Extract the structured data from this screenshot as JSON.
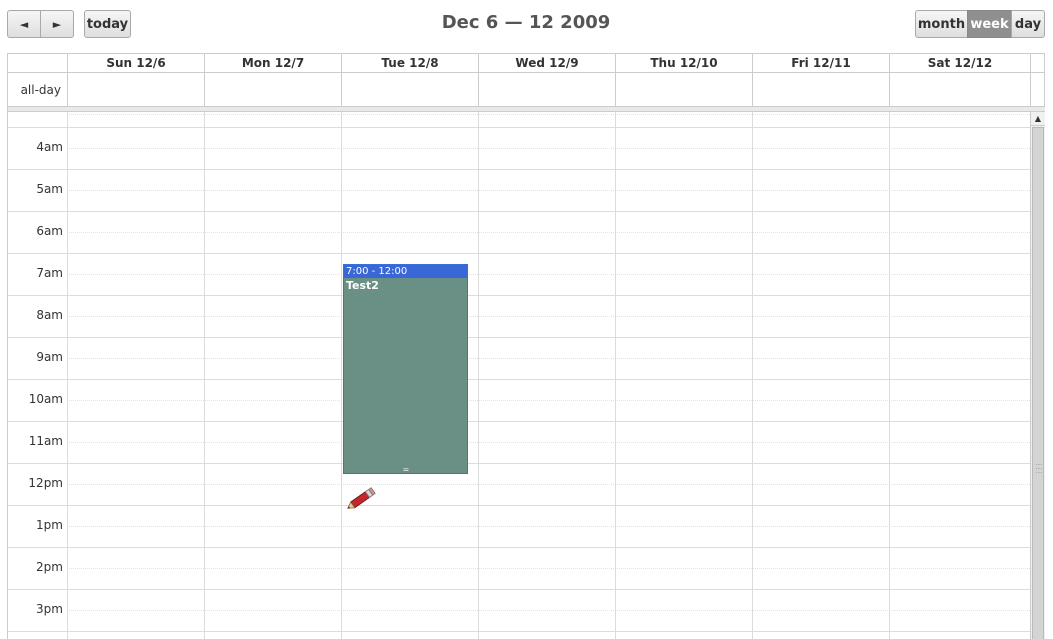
{
  "header": {
    "prev_label": "◄",
    "next_label": "►",
    "today_label": "today",
    "title": "Dec 6 — 12 2009",
    "views": {
      "month": "month",
      "week": "week",
      "day": "day"
    },
    "active_view": "week"
  },
  "columns": [
    "Sun 12/6",
    "Mon 12/7",
    "Tue 12/8",
    "Wed 12/9",
    "Thu 12/10",
    "Fri 12/11",
    "Sat 12/12"
  ],
  "allday_label": "all-day",
  "time_slots": [
    "4am",
    "5am",
    "6am",
    "7am",
    "8am",
    "9am",
    "10am",
    "11am",
    "12pm",
    "1pm",
    "2pm",
    "3pm"
  ],
  "events": [
    {
      "time": "7:00 - 12:00",
      "title": "Test2",
      "day": "Tue 12/8",
      "color": "#6a8f85",
      "header_color": "#3a67d6"
    }
  ],
  "colors": {
    "border": "#cccccc",
    "active_button": "#8f8f8f",
    "event_body": "#6a8f85",
    "event_header": "#3a67d6"
  },
  "icons": {
    "edit": "pencil-icon",
    "scroll_up": "scroll-up-icon"
  }
}
